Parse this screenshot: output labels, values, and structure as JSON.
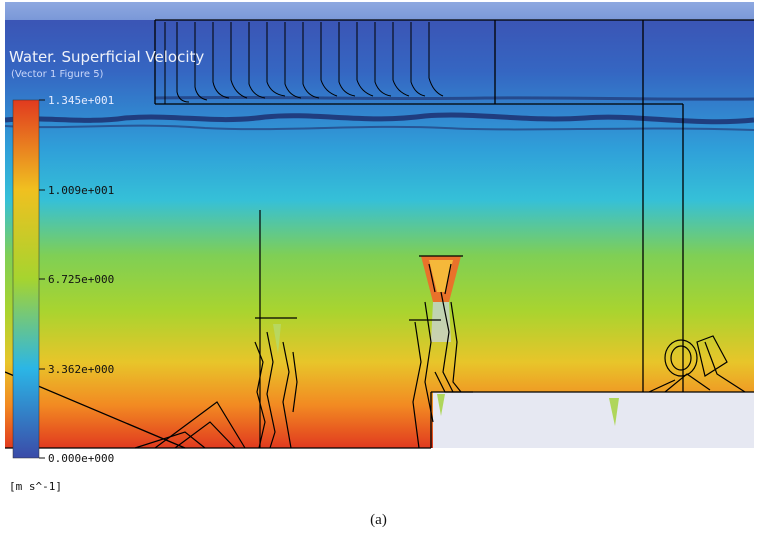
{
  "figure": {
    "title": "Water. Superficial Velocity",
    "subtitle": "(Vector 1 Figure 5)",
    "units": "[m s^-1]",
    "colors": {
      "min": "#3b4ba8",
      "low": "#2bb6e6",
      "mid": "#a6d42f",
      "high": "#f0c020",
      "max": "#e13a1f"
    }
  },
  "legend": {
    "ticks": [
      "1.345e+001",
      "1.009e+001",
      "6.725e+000",
      "3.362e+000",
      "0.000e+000"
    ]
  },
  "caption": "(a)"
}
